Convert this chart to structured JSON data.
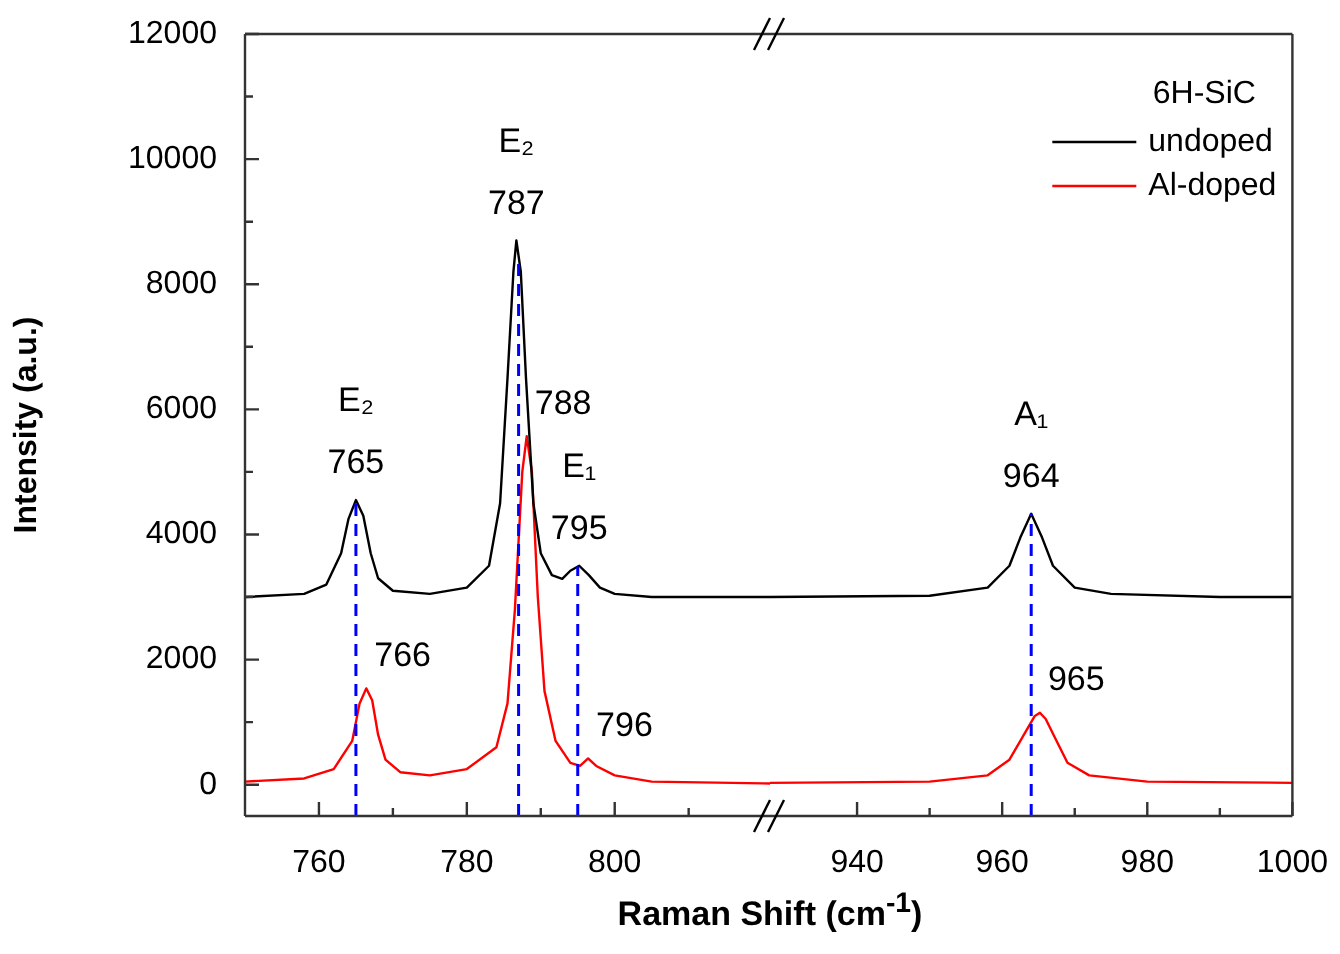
{
  "chart_data": [
    {
      "type": "line",
      "ylabel": "Intensity (a.u.)",
      "xlabel": "Raman Shift (cm$^{-1}$)",
      "marker": "none",
      "xlim": [
        750,
        821
      ],
      "xticks": [
        760,
        {
          "value": 770,
          "label": null
        },
        780,
        {
          "value": 790,
          "label": null
        },
        800,
        {
          "value": 810,
          "label": null
        }
      ],
      "ylim": [
        -500,
        12000
      ],
      "yticks": [
        0,
        {
          "value": 1000,
          "label": null
        },
        2000,
        {
          "value": 3000,
          "label": null
        },
        4000,
        {
          "value": 5000,
          "label": null
        },
        6000,
        {
          "value": 7000,
          "label": null
        },
        8000,
        {
          "value": 9000,
          "label": null
        },
        10000,
        {
          "value": 11000,
          "label": null
        },
        12000
      ],
      "series": [
        {
          "color": "#000000",
          "x": [
            750,
            758,
            761,
            763,
            764,
            765,
            766,
            767,
            768,
            770,
            775,
            780,
            783,
            784.5,
            785.5,
            786.3,
            786.7,
            787.3,
            788,
            789,
            790,
            791.5,
            792.9,
            794,
            795.2,
            796.5,
            798,
            800,
            805,
            821
          ],
          "values": [
            3000,
            3050,
            3200,
            3700,
            4250,
            4550,
            4300,
            3700,
            3300,
            3100,
            3050,
            3150,
            3500,
            4500,
            6500,
            8200,
            8700,
            8200,
            6500,
            4500,
            3700,
            3350,
            3290,
            3420,
            3500,
            3350,
            3150,
            3050,
            3000,
            3000
          ]
        },
        {
          "color": "#ff0000",
          "x": [
            750,
            758,
            762,
            764.5,
            765.5,
            766.4,
            767.2,
            768,
            769,
            771,
            775,
            780,
            784,
            785.5,
            786.5,
            787.5,
            788.1,
            788.8,
            789.6,
            790.5,
            792,
            794,
            795.3,
            796.4,
            797.5,
            800,
            805,
            821
          ],
          "values": [
            50,
            100,
            250,
            700,
            1300,
            1540,
            1350,
            800,
            400,
            200,
            150,
            250,
            600,
            1300,
            2800,
            5000,
            5570,
            5000,
            3000,
            1500,
            700,
            350,
            300,
            420,
            300,
            150,
            50,
            20
          ]
        }
      ],
      "ref_lines": [
        {
          "axis": "x",
          "value": 765,
          "color": "#0000ff",
          "line_style": "dashed"
        },
        {
          "axis": "x",
          "value": 787,
          "color": "#0000ff",
          "line_style": "dashed"
        },
        {
          "axis": "x",
          "value": 795,
          "color": "#0000ff",
          "line_style": "dashed"
        }
      ],
      "annotations": [
        {
          "text": "E₂",
          "x": 765,
          "y": 4550
        },
        {
          "text": "765",
          "x": 765,
          "y": 4550
        },
        {
          "text": "E₂",
          "x": 786.7,
          "y": 8700
        },
        {
          "text": "787",
          "x": 786.7,
          "y": 8700
        },
        {
          "text": "788",
          "x": 788.1,
          "y": 5570
        },
        {
          "text": "E₁",
          "x": 795.2,
          "y": 3500
        },
        {
          "text": "795",
          "x": 795.2,
          "y": 3500
        },
        {
          "text": "766",
          "x": 766.4,
          "y": 1540
        },
        {
          "text": "796",
          "x": 796.4,
          "y": 420
        }
      ]
    },
    {
      "type": "line",
      "marker": "none",
      "tick_labels": "x",
      "legend": "top right",
      "legend_title": "6H-SiC",
      "xlim": [
        928,
        1000
      ],
      "xticks": [
        940,
        {
          "value": 950,
          "label": null
        },
        960,
        {
          "value": 970,
          "label": null
        },
        980,
        {
          "value": 990,
          "label": null
        },
        1000
      ],
      "ylim": [
        -500,
        12000
      ],
      "series": [
        {
          "name": "undoped",
          "color": "#000000",
          "x": [
            928,
            950,
            958,
            961,
            962.5,
            964,
            965.5,
            967,
            970,
            975,
            990,
            1000
          ],
          "values": [
            3000,
            3020,
            3150,
            3500,
            3950,
            4330,
            3950,
            3500,
            3150,
            3050,
            3000,
            3000
          ]
        },
        {
          "name": "Al-doped",
          "color": "#ff0000",
          "x": [
            928,
            950,
            958,
            961,
            963,
            964.5,
            965.2,
            966,
            967.5,
            969,
            972,
            980,
            1000
          ],
          "values": [
            30,
            50,
            150,
            400,
            800,
            1100,
            1150,
            1050,
            700,
            350,
            150,
            50,
            30
          ]
        }
      ],
      "ref_lines": [
        {
          "axis": "x",
          "value": 964,
          "color": "#0000ff",
          "line_style": "dashed"
        }
      ],
      "annotations": [
        {
          "text": "A₁",
          "x": 964,
          "y": 4330
        },
        {
          "text": "964",
          "x": 964,
          "y": 4330
        },
        {
          "text": "965",
          "x": 965.2,
          "y": 1150
        }
      ]
    }
  ]
}
